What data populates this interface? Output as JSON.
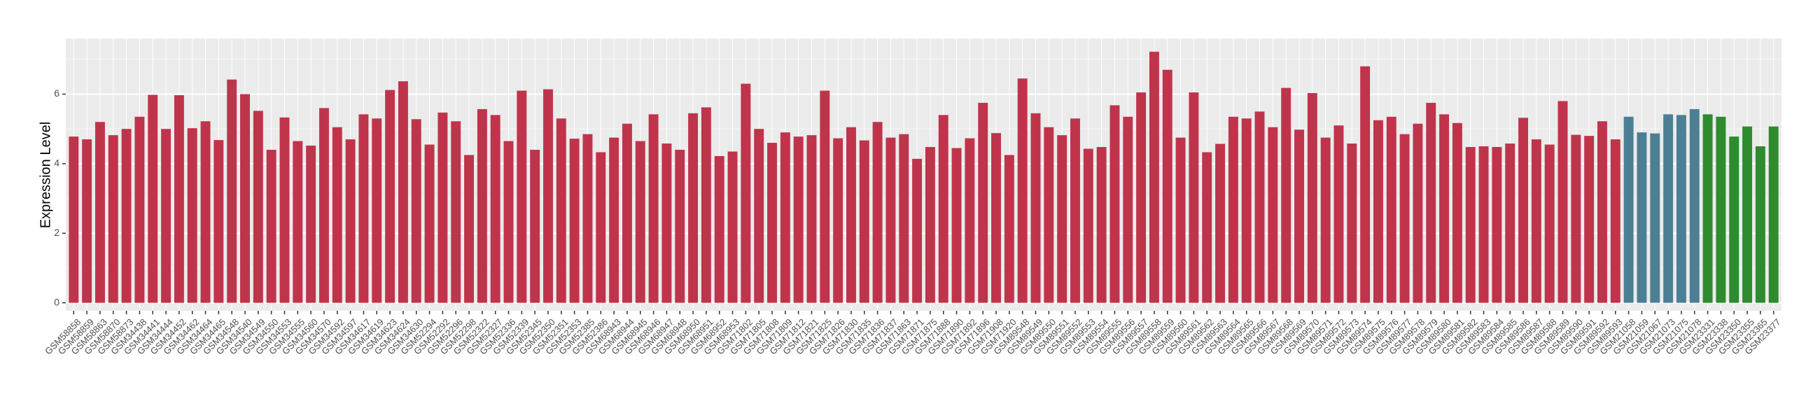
{
  "chart_data": {
    "type": "bar",
    "y_label": "Expression Level",
    "ylim": [
      -0.23,
      7.6
    ],
    "yticks": [
      0,
      2,
      4,
      6
    ],
    "grid": true,
    "series": [
      {
        "color": "#c0344b",
        "categories": [
          "GSM58858",
          "GSM58859",
          "GSM58863",
          "GSM58870",
          "GSM58873",
          "GSM34438",
          "GSM34441",
          "GSM34444",
          "GSM34452",
          "GSM34462",
          "GSM34464",
          "GSM34465",
          "GSM34548",
          "GSM34540",
          "GSM34549",
          "GSM34550",
          "GSM34553",
          "GSM34555",
          "GSM34560",
          "GSM34570",
          "GSM34592",
          "GSM34597",
          "GSM34617",
          "GSM34619",
          "GSM34623",
          "GSM34624",
          "GSM34630",
          "GSM52294",
          "GSM52292",
          "GSM52296",
          "GSM52298",
          "GSM52322",
          "GSM52327",
          "GSM52336",
          "GSM52339",
          "GSM52345",
          "GSM52350",
          "GSM52351",
          "GSM52353",
          "GSM52385",
          "GSM52386",
          "GSM68943",
          "GSM68944",
          "GSM68945",
          "GSM68946",
          "GSM68947",
          "GSM68948",
          "GSM68950",
          "GSM68951",
          "GSM68952",
          "GSM68953",
          "GSM71802",
          "GSM71805",
          "GSM71808",
          "GSM71809",
          "GSM71812",
          "GSM71821",
          "GSM71825",
          "GSM71826",
          "GSM71830",
          "GSM71835",
          "GSM71836",
          "GSM71837",
          "GSM71863",
          "GSM71871",
          "GSM71875",
          "GSM71888",
          "GSM71890",
          "GSM71892",
          "GSM71896",
          "GSM71908",
          "GSM71920",
          "GSM89548",
          "GSM89549",
          "GSM89550",
          "GSM89551",
          "GSM89552",
          "GSM89553",
          "GSM89554",
          "GSM89555",
          "GSM89556",
          "GSM89557",
          "GSM89558",
          "GSM89559",
          "GSM89560",
          "GSM89561",
          "GSM89562",
          "GSM89563",
          "GSM89564",
          "GSM89565",
          "GSM89566",
          "GSM89567",
          "GSM89568",
          "GSM89569",
          "GSM89570",
          "GSM89571",
          "GSM89572",
          "GSM89573",
          "GSM89574",
          "GSM89575",
          "GSM89576",
          "GSM89577",
          "GSM89578",
          "GSM89579",
          "GSM89580",
          "GSM89581",
          "GSM89582",
          "GSM89583",
          "GSM89584",
          "GSM89585",
          "GSM89586",
          "GSM89587",
          "GSM89588",
          "GSM89589",
          "GSM89590",
          "GSM89591",
          "GSM89592",
          "GSM89593"
        ],
        "values": [
          4.78,
          4.7,
          5.2,
          4.82,
          5.0,
          5.35,
          5.98,
          5.0,
          5.97,
          5.02,
          5.22,
          4.68,
          6.42,
          6.0,
          5.52,
          4.4,
          5.33,
          4.65,
          4.52,
          5.6,
          5.05,
          4.7,
          5.42,
          5.3,
          6.12,
          6.37,
          5.28,
          4.55,
          5.47,
          5.22,
          4.25,
          5.57,
          5.4,
          4.65,
          6.1,
          4.4,
          6.14,
          5.3,
          4.72,
          4.85,
          4.33,
          4.75,
          5.15,
          4.65,
          5.42,
          4.58,
          4.4,
          5.45,
          5.62,
          4.22,
          4.35,
          6.3,
          5.0,
          4.6,
          4.9,
          4.78,
          4.82,
          6.1,
          4.73,
          5.05,
          4.67,
          5.2,
          4.75,
          4.85,
          4.14,
          4.48,
          5.4,
          4.45,
          4.73,
          5.75,
          4.88,
          4.25,
          6.45,
          5.45,
          5.05,
          4.82,
          5.3,
          4.43,
          4.48,
          5.68,
          5.35,
          6.05,
          7.22,
          6.7,
          4.75,
          6.05,
          4.33,
          4.57,
          5.35,
          5.3,
          5.5,
          5.05,
          6.18,
          4.98,
          6.03,
          4.75,
          5.1,
          4.58,
          6.8,
          5.25,
          5.35,
          4.85,
          5.15,
          5.75,
          5.42,
          5.17,
          4.48,
          4.5,
          4.48,
          4.58,
          5.32,
          4.7,
          4.55,
          5.8,
          4.83,
          4.8,
          5.22,
          4.7
        ]
      },
      {
        "color": "#4d7f94",
        "categories": [
          "GSM21058",
          "GSM21059",
          "GSM21067",
          "GSM21073",
          "GSM21075",
          "GSM21078"
        ],
        "values": [
          5.35,
          4.9,
          4.87,
          5.42,
          5.4,
          5.57
        ]
      },
      {
        "color": "#2e8b2e",
        "categories": [
          "GSM23331",
          "GSM23338",
          "GSM23350",
          "GSM23355",
          "GSM23365",
          "GSM23377"
        ],
        "values": [
          5.42,
          5.35,
          4.78,
          5.07,
          4.5,
          5.07
        ]
      }
    ]
  }
}
